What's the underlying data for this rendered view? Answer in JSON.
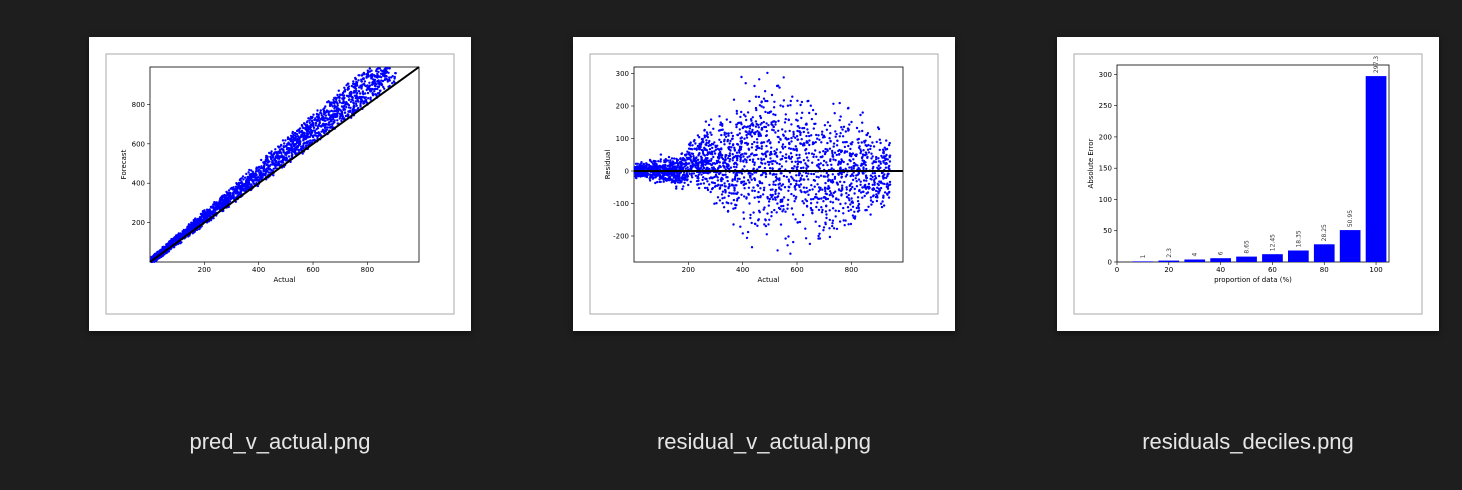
{
  "files": [
    {
      "name": "pred_v_actual.png",
      "chart_data": {
        "type": "scatter",
        "xlabel": "Actual",
        "ylabel": "Forecast",
        "xticks": [
          200,
          400,
          600,
          800
        ],
        "yticks": [
          200,
          400,
          600,
          800
        ],
        "xlim": [
          0,
          990
        ],
        "ylim": [
          0,
          990
        ],
        "point_color": "#0000ff",
        "reference_line": {
          "from": [
            0,
            0
          ],
          "to": [
            990,
            990
          ],
          "color": "#000000"
        },
        "trend": {
          "slope": 1.12,
          "spread_low": 0.06,
          "spread_high": 0.25
        }
      }
    },
    {
      "name": "residual_v_actual.png",
      "chart_data": {
        "type": "scatter",
        "xlabel": "Actual",
        "ylabel": "Residual",
        "xticks": [
          200,
          400,
          600,
          800
        ],
        "yticks": [
          300,
          200,
          100,
          0,
          -100,
          -200
        ],
        "xlim": [
          0,
          990
        ],
        "ylim": [
          -280,
          320
        ],
        "point_color": "#0000ff",
        "reference_line": {
          "from": [
            0,
            0
          ],
          "to": [
            990,
            0
          ],
          "color": "#000000"
        }
      }
    },
    {
      "name": "residuals_deciles.png",
      "chart_data": {
        "type": "bar",
        "xlabel": "proportion of data (%)",
        "ylabel": "Absolute Error",
        "xticks": [
          0,
          20,
          40,
          60,
          80,
          100
        ],
        "yticks": [
          0,
          50,
          100,
          150,
          200,
          250,
          300
        ],
        "xlim": [
          0,
          105
        ],
        "ylim": [
          0,
          315
        ],
        "bar_color": "#0000ff",
        "categories": [
          10,
          20,
          30,
          40,
          50,
          60,
          70,
          80,
          90,
          100
        ],
        "values": [
          1,
          2.3,
          4,
          6,
          8.65,
          12.45,
          18.35,
          28.25,
          50.95,
          297.3
        ],
        "labels": [
          "1",
          "2.3",
          "4",
          "6",
          "8.65",
          "12.45",
          "18.35",
          "28.25",
          "50.95",
          "297.3"
        ]
      }
    }
  ]
}
